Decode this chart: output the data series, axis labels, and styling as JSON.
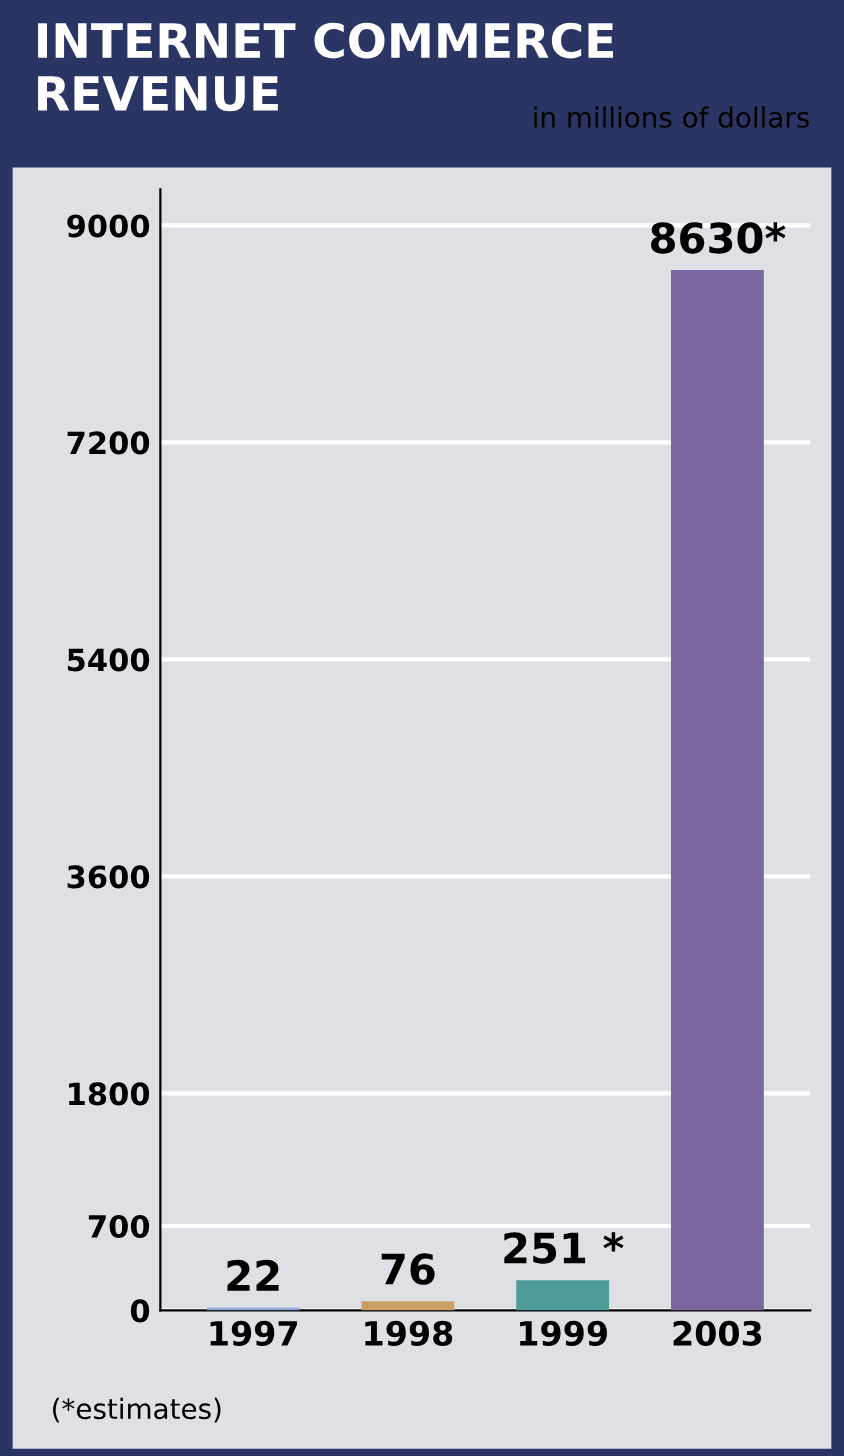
{
  "chart_data": {
    "type": "bar",
    "title": "INTERNET COMMERCE\nREVENUE",
    "categories": [
      "1997",
      "1998",
      "1999",
      "2003"
    ],
    "values": [
      22,
      76,
      251,
      8630
    ],
    "colors": [
      "#8aa6d6",
      "#c9a062",
      "#4e9b97",
      "#7b679f"
    ],
    "value_labels": [
      "22",
      "76",
      "251 *",
      "8630*"
    ],
    "ylim": [
      0,
      9300
    ],
    "yticks": [
      0,
      700,
      1800,
      3600,
      5400,
      7200,
      9000
    ],
    "grid": "y",
    "annotations": [
      "in millions of dollars",
      "(*estimates)"
    ]
  }
}
